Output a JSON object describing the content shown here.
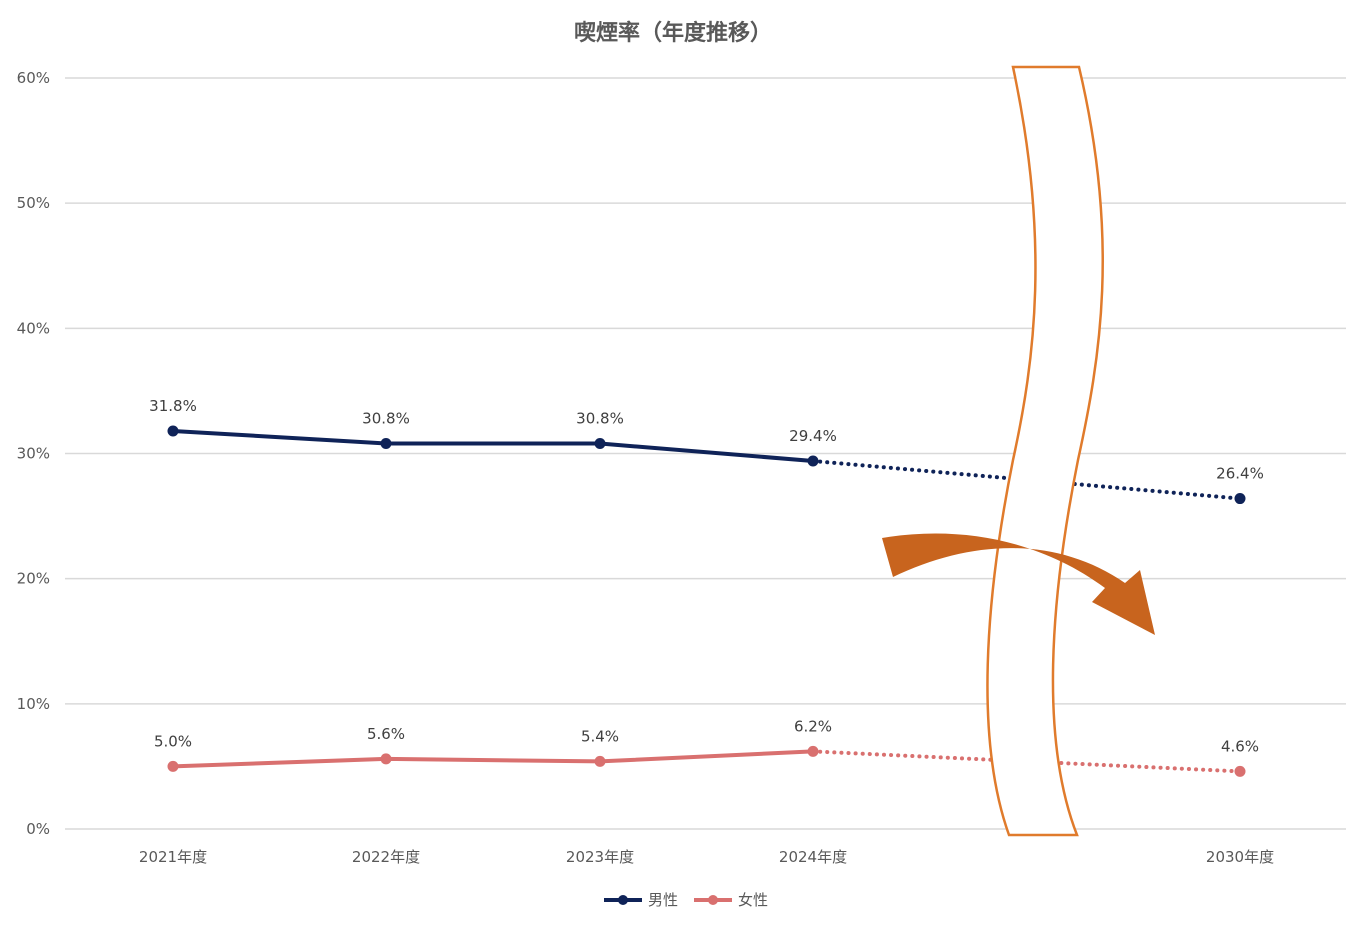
{
  "chart_data": {
    "type": "line",
    "title": "喫煙率（年度推移）",
    "categories": [
      "2021年度",
      "2022年度",
      "2023年度",
      "2024年度",
      "",
      "2030年度"
    ],
    "y_ticks": [
      "0%",
      "10%",
      "20%",
      "30%",
      "40%",
      "50%",
      "60%"
    ],
    "ylim": [
      0,
      60
    ],
    "grid": true,
    "legend_position": "bottom",
    "series": [
      {
        "name": "男性",
        "color": "#0f2358",
        "values": [
          31.8,
          30.8,
          30.8,
          29.4,
          null,
          26.4
        ],
        "labels": [
          "31.8%",
          "30.8%",
          "30.8%",
          "29.4%",
          null,
          "26.4%"
        ],
        "projection_from_index": 3
      },
      {
        "name": "女性",
        "color": "#d9706f",
        "values": [
          5.0,
          5.6,
          5.4,
          6.2,
          null,
          4.6
        ],
        "labels": [
          "5.0%",
          "5.6%",
          "5.4%",
          "6.2%",
          null,
          "4.6%"
        ],
        "projection_from_index": 3
      }
    ],
    "annotations": [
      {
        "type": "axis-break",
        "color": "#e07b2c",
        "between": [
          "2024年度",
          "2030年度"
        ]
      },
      {
        "type": "trend-arrow",
        "direction": "down",
        "color": "#c8641e"
      }
    ]
  }
}
